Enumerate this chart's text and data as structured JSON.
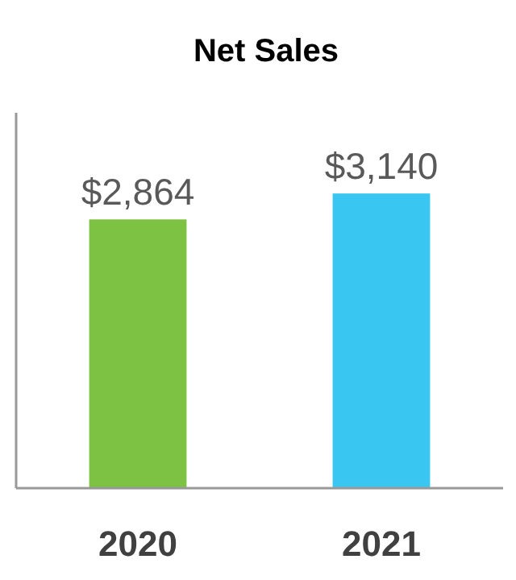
{
  "chart_data": {
    "type": "bar",
    "title": "Net Sales",
    "categories": [
      "2020",
      "2021"
    ],
    "values": [
      2864,
      3140
    ],
    "colors": [
      "#7dc242",
      "#39c6f0"
    ],
    "value_labels": [
      "$2,864",
      "$3,140"
    ],
    "ylim": [
      0,
      4000
    ],
    "tick_labels": "x"
  }
}
